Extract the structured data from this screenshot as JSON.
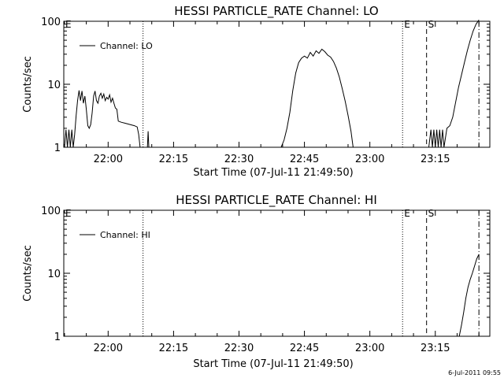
{
  "footer_stamp": "6-Jul-2011 09:55",
  "colors": {
    "background": "#ffffff",
    "foreground": "#000000"
  },
  "chart_data": [
    {
      "type": "line",
      "title": "HESSI PARTICLE_RATE Channel: LO",
      "xlabel": "Start Time (07-Jul-11 21:49:50)",
      "ylabel": "Counts/sec",
      "yscale": "log",
      "ylim": [
        1,
        100
      ],
      "xlim": [
        "21:49:50",
        "23:27:30"
      ],
      "x_ticks": [
        "22:00",
        "22:15",
        "22:30",
        "22:45",
        "23:00",
        "23:15"
      ],
      "y_ticks": [
        "1",
        "10",
        "100"
      ],
      "legend": {
        "entries": [
          "Channel: LO"
        ],
        "position": "top-left"
      },
      "markers": [
        {
          "label": "E",
          "time": "21:49:50",
          "style": "solid"
        },
        {
          "label": "",
          "time": "22:08:00",
          "style": "dotted"
        },
        {
          "label": "E",
          "time": "23:07:30",
          "style": "dotted"
        },
        {
          "label": "S",
          "time": "23:13:00",
          "style": "dashed"
        },
        {
          "label": "",
          "time": "23:25:00",
          "style": "dashdot"
        }
      ],
      "series": [
        {
          "name": "Channel: LO",
          "segments": [
            [
              [
                "21:50:00",
                1
              ],
              [
                "21:50:20",
                1.9
              ],
              [
                "21:50:40",
                1
              ],
              [
                "21:51:00",
                1.9
              ],
              [
                "21:51:20",
                1
              ],
              [
                "21:51:40",
                1.9
              ],
              [
                "21:52:00",
                1
              ],
              [
                "21:52:20",
                1.6
              ],
              [
                "21:52:40",
                3.2
              ],
              [
                "21:53:00",
                5.5
              ],
              [
                "21:53:20",
                8
              ],
              [
                "21:53:40",
                5.5
              ],
              [
                "21:54:00",
                7.8
              ],
              [
                "21:54:20",
                5
              ],
              [
                "21:54:40",
                6.5
              ],
              [
                "21:55:00",
                4
              ],
              [
                "21:55:20",
                2.2
              ],
              [
                "21:55:40",
                2
              ],
              [
                "21:56:00",
                2.3
              ],
              [
                "21:56:20",
                3.5
              ],
              [
                "21:56:40",
                6.5
              ],
              [
                "21:57:00",
                7.8
              ],
              [
                "21:57:20",
                5.5
              ],
              [
                "21:57:40",
                5
              ],
              [
                "21:58:00",
                6.5
              ],
              [
                "21:58:20",
                7.2
              ],
              [
                "21:58:40",
                6
              ],
              [
                "21:59:00",
                7
              ],
              [
                "21:59:20",
                5.5
              ],
              [
                "21:59:40",
                6.2
              ],
              [
                "22:00:00",
                5.8
              ],
              [
                "22:00:20",
                6.8
              ],
              [
                "22:00:40",
                5.2
              ],
              [
                "22:01:00",
                6
              ],
              [
                "22:01:20",
                5
              ],
              [
                "22:01:40",
                4.2
              ],
              [
                "22:02:00",
                4
              ],
              [
                "22:02:20",
                2.6
              ],
              [
                "22:03:00",
                2.5
              ],
              [
                "22:04:00",
                2.4
              ],
              [
                "22:05:00",
                2.3
              ],
              [
                "22:06:00",
                2.2
              ],
              [
                "22:06:40",
                2.1
              ],
              [
                "22:07:00",
                1.6
              ],
              [
                "22:07:20",
                1
              ]
            ],
            [
              [
                "22:09:00",
                1
              ],
              [
                "22:09:10",
                1.8
              ],
              [
                "22:09:20",
                1
              ]
            ],
            [
              [
                "22:39:40",
                1
              ],
              [
                "22:40:20",
                1.3
              ],
              [
                "22:41:00",
                2
              ],
              [
                "22:41:40",
                3.6
              ],
              [
                "22:42:20",
                8
              ],
              [
                "22:43:00",
                15
              ],
              [
                "22:43:40",
                22
              ],
              [
                "22:44:20",
                26
              ],
              [
                "22:45:00",
                28
              ],
              [
                "22:45:40",
                26
              ],
              [
                "22:46:20",
                32
              ],
              [
                "22:47:00",
                28
              ],
              [
                "22:47:40",
                34
              ],
              [
                "22:48:20",
                31
              ],
              [
                "22:49:00",
                36
              ],
              [
                "22:49:40",
                33
              ],
              [
                "22:50:20",
                29
              ],
              [
                "22:51:00",
                27
              ],
              [
                "22:51:40",
                23
              ],
              [
                "22:52:20",
                18
              ],
              [
                "22:53:00",
                13
              ],
              [
                "22:53:40",
                8.5
              ],
              [
                "22:54:20",
                5.4
              ],
              [
                "22:55:00",
                3.2
              ],
              [
                "22:55:40",
                1.8
              ],
              [
                "22:56:10",
                1
              ]
            ],
            [
              [
                "23:13:30",
                1
              ],
              [
                "23:14:00",
                1.9
              ],
              [
                "23:14:20",
                1
              ],
              [
                "23:14:40",
                1.9
              ],
              [
                "23:15:00",
                1
              ],
              [
                "23:15:20",
                1.9
              ],
              [
                "23:15:40",
                1
              ],
              [
                "23:16:00",
                1.9
              ],
              [
                "23:16:20",
                1
              ],
              [
                "23:16:40",
                1.9
              ],
              [
                "23:17:00",
                1
              ],
              [
                "23:17:40",
                2
              ],
              [
                "23:18:20",
                2.2
              ],
              [
                "23:19:00",
                3
              ],
              [
                "23:19:40",
                5.2
              ],
              [
                "23:20:20",
                9
              ],
              [
                "23:21:00",
                14
              ],
              [
                "23:21:40",
                22
              ],
              [
                "23:22:20",
                34
              ],
              [
                "23:23:00",
                50
              ],
              [
                "23:23:40",
                70
              ],
              [
                "23:24:20",
                90
              ],
              [
                "23:25:00",
                105
              ]
            ]
          ]
        }
      ]
    },
    {
      "type": "line",
      "title": "HESSI PARTICLE_RATE Channel: HI",
      "xlabel": "Start Time (07-Jul-11 21:49:50)",
      "ylabel": "Counts/sec",
      "yscale": "log",
      "ylim": [
        1,
        100
      ],
      "xlim": [
        "21:49:50",
        "23:27:30"
      ],
      "x_ticks": [
        "22:00",
        "22:15",
        "22:30",
        "22:45",
        "23:00",
        "23:15"
      ],
      "y_ticks": [
        "1",
        "10",
        "100"
      ],
      "legend": {
        "entries": [
          "Channel: HI"
        ],
        "position": "top-left"
      },
      "markers": [
        {
          "label": "E",
          "time": "21:49:50",
          "style": "solid"
        },
        {
          "label": "",
          "time": "22:08:00",
          "style": "dotted"
        },
        {
          "label": "E",
          "time": "23:07:30",
          "style": "dotted"
        },
        {
          "label": "S",
          "time": "23:13:00",
          "style": "dashed"
        },
        {
          "label": "",
          "time": "23:25:00",
          "style": "dashdot"
        }
      ],
      "series": [
        {
          "name": "Channel: HI",
          "segments": [
            [
              [
                "23:20:30",
                1
              ],
              [
                "23:21:00",
                1.5
              ],
              [
                "23:21:30",
                2.4
              ],
              [
                "23:22:00",
                4
              ],
              [
                "23:22:30",
                6
              ],
              [
                "23:23:00",
                8
              ],
              [
                "23:23:30",
                10
              ],
              [
                "23:24:00",
                13
              ],
              [
                "23:24:30",
                17
              ],
              [
                "23:25:00",
                20
              ]
            ]
          ]
        }
      ]
    }
  ]
}
